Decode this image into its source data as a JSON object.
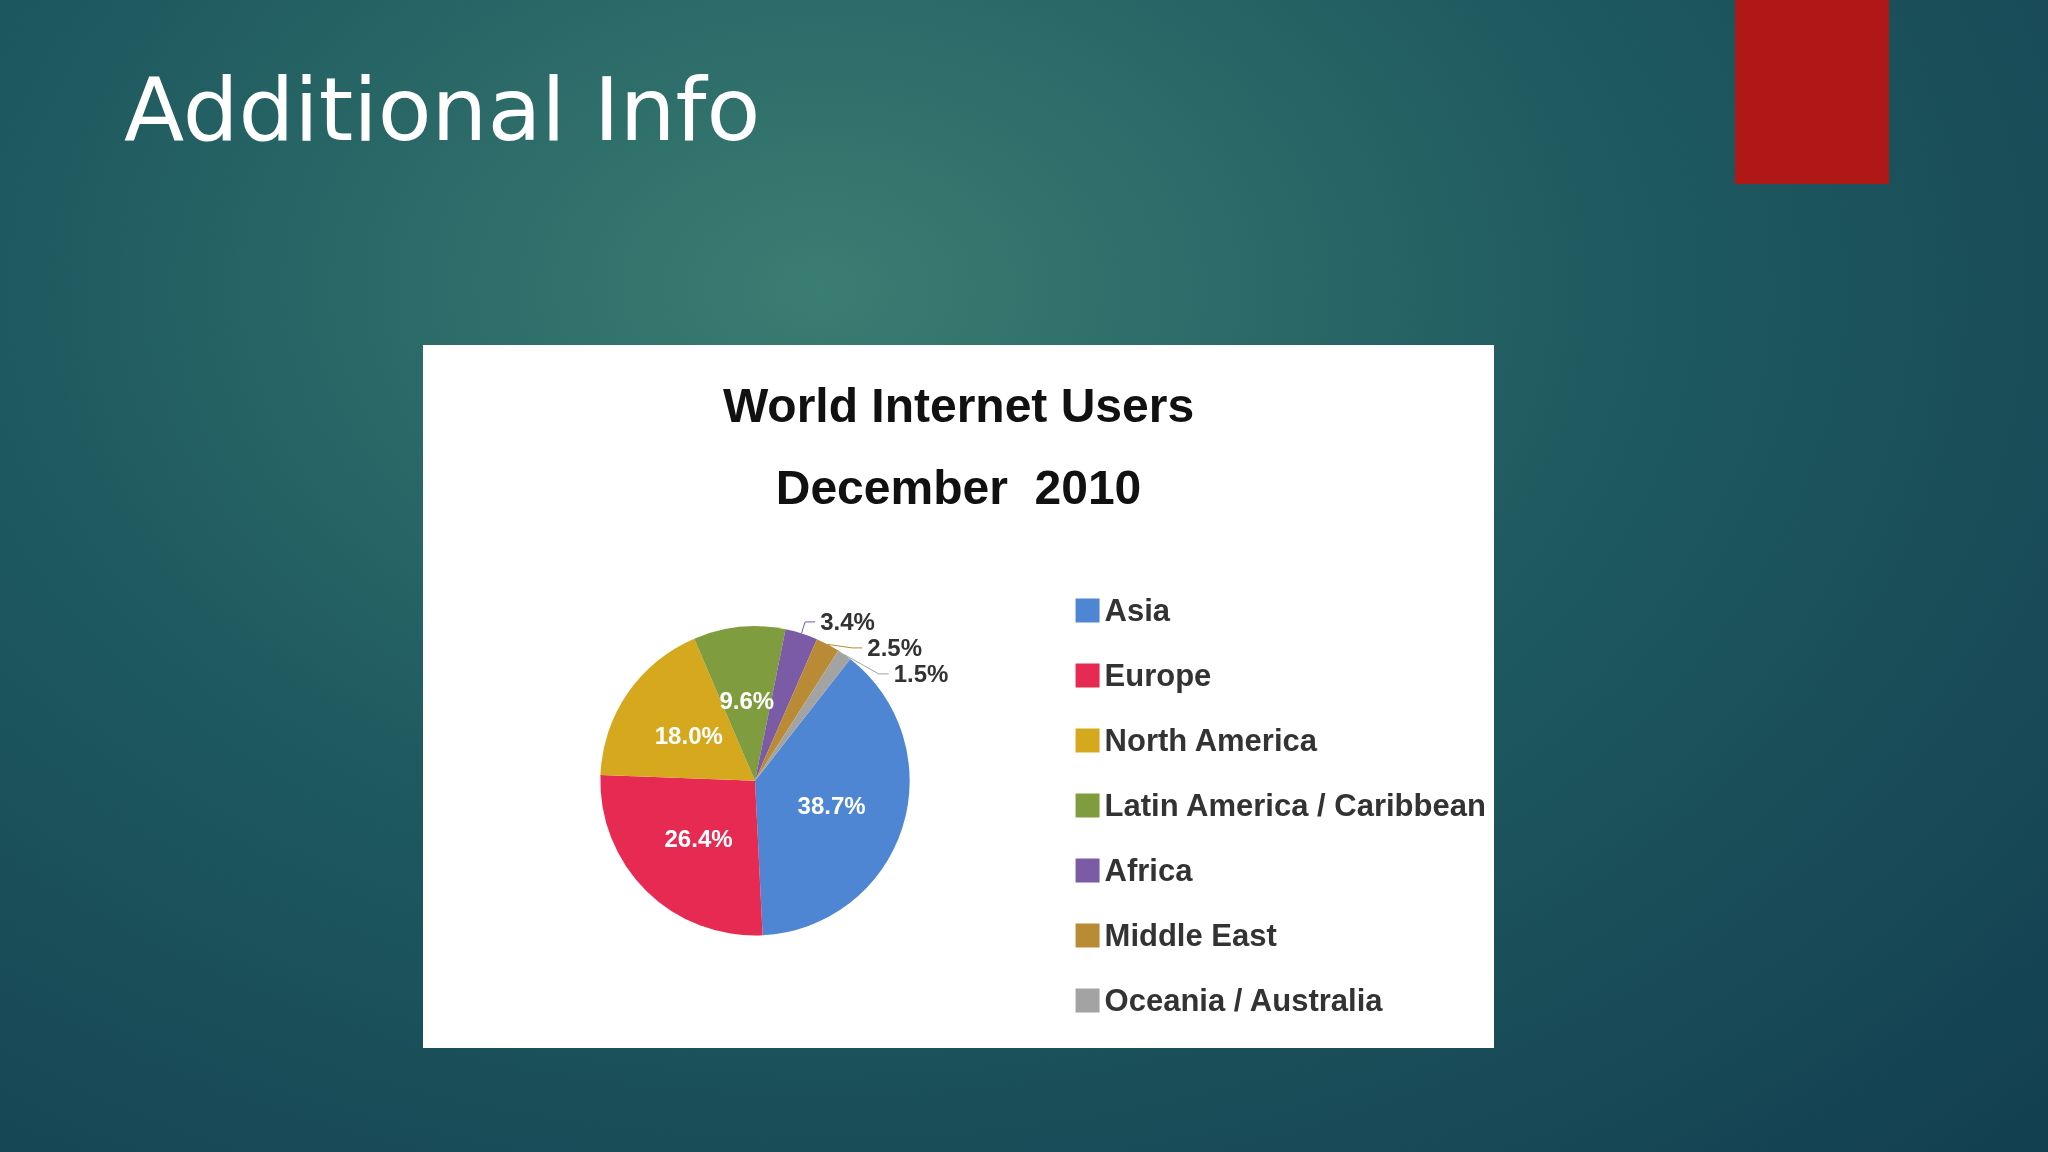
{
  "chart_data": {
    "type": "pie",
    "title": "World Internet Users\nDecember  2010",
    "annotations": [
      "Additional Info"
    ],
    "categories": [
      "Asia",
      "Europe",
      "North America",
      "Latin America / Caribbean",
      "Africa",
      "Middle East",
      "Oceania / Australia"
    ],
    "values": [
      38.7,
      26.4,
      18.0,
      9.6,
      3.4,
      2.5,
      1.5
    ],
    "value_labels": [
      "38.7%",
      "26.4%",
      "18.0%",
      "9.6%",
      "3.4%",
      "2.5%",
      "1.5%"
    ],
    "colors": [
      "#4f86d4",
      "#e62a52",
      "#d6a81e",
      "#7f9c3e",
      "#7b5aa6",
      "#b98b34",
      "#a3a3a3"
    ],
    "legend": "right"
  }
}
